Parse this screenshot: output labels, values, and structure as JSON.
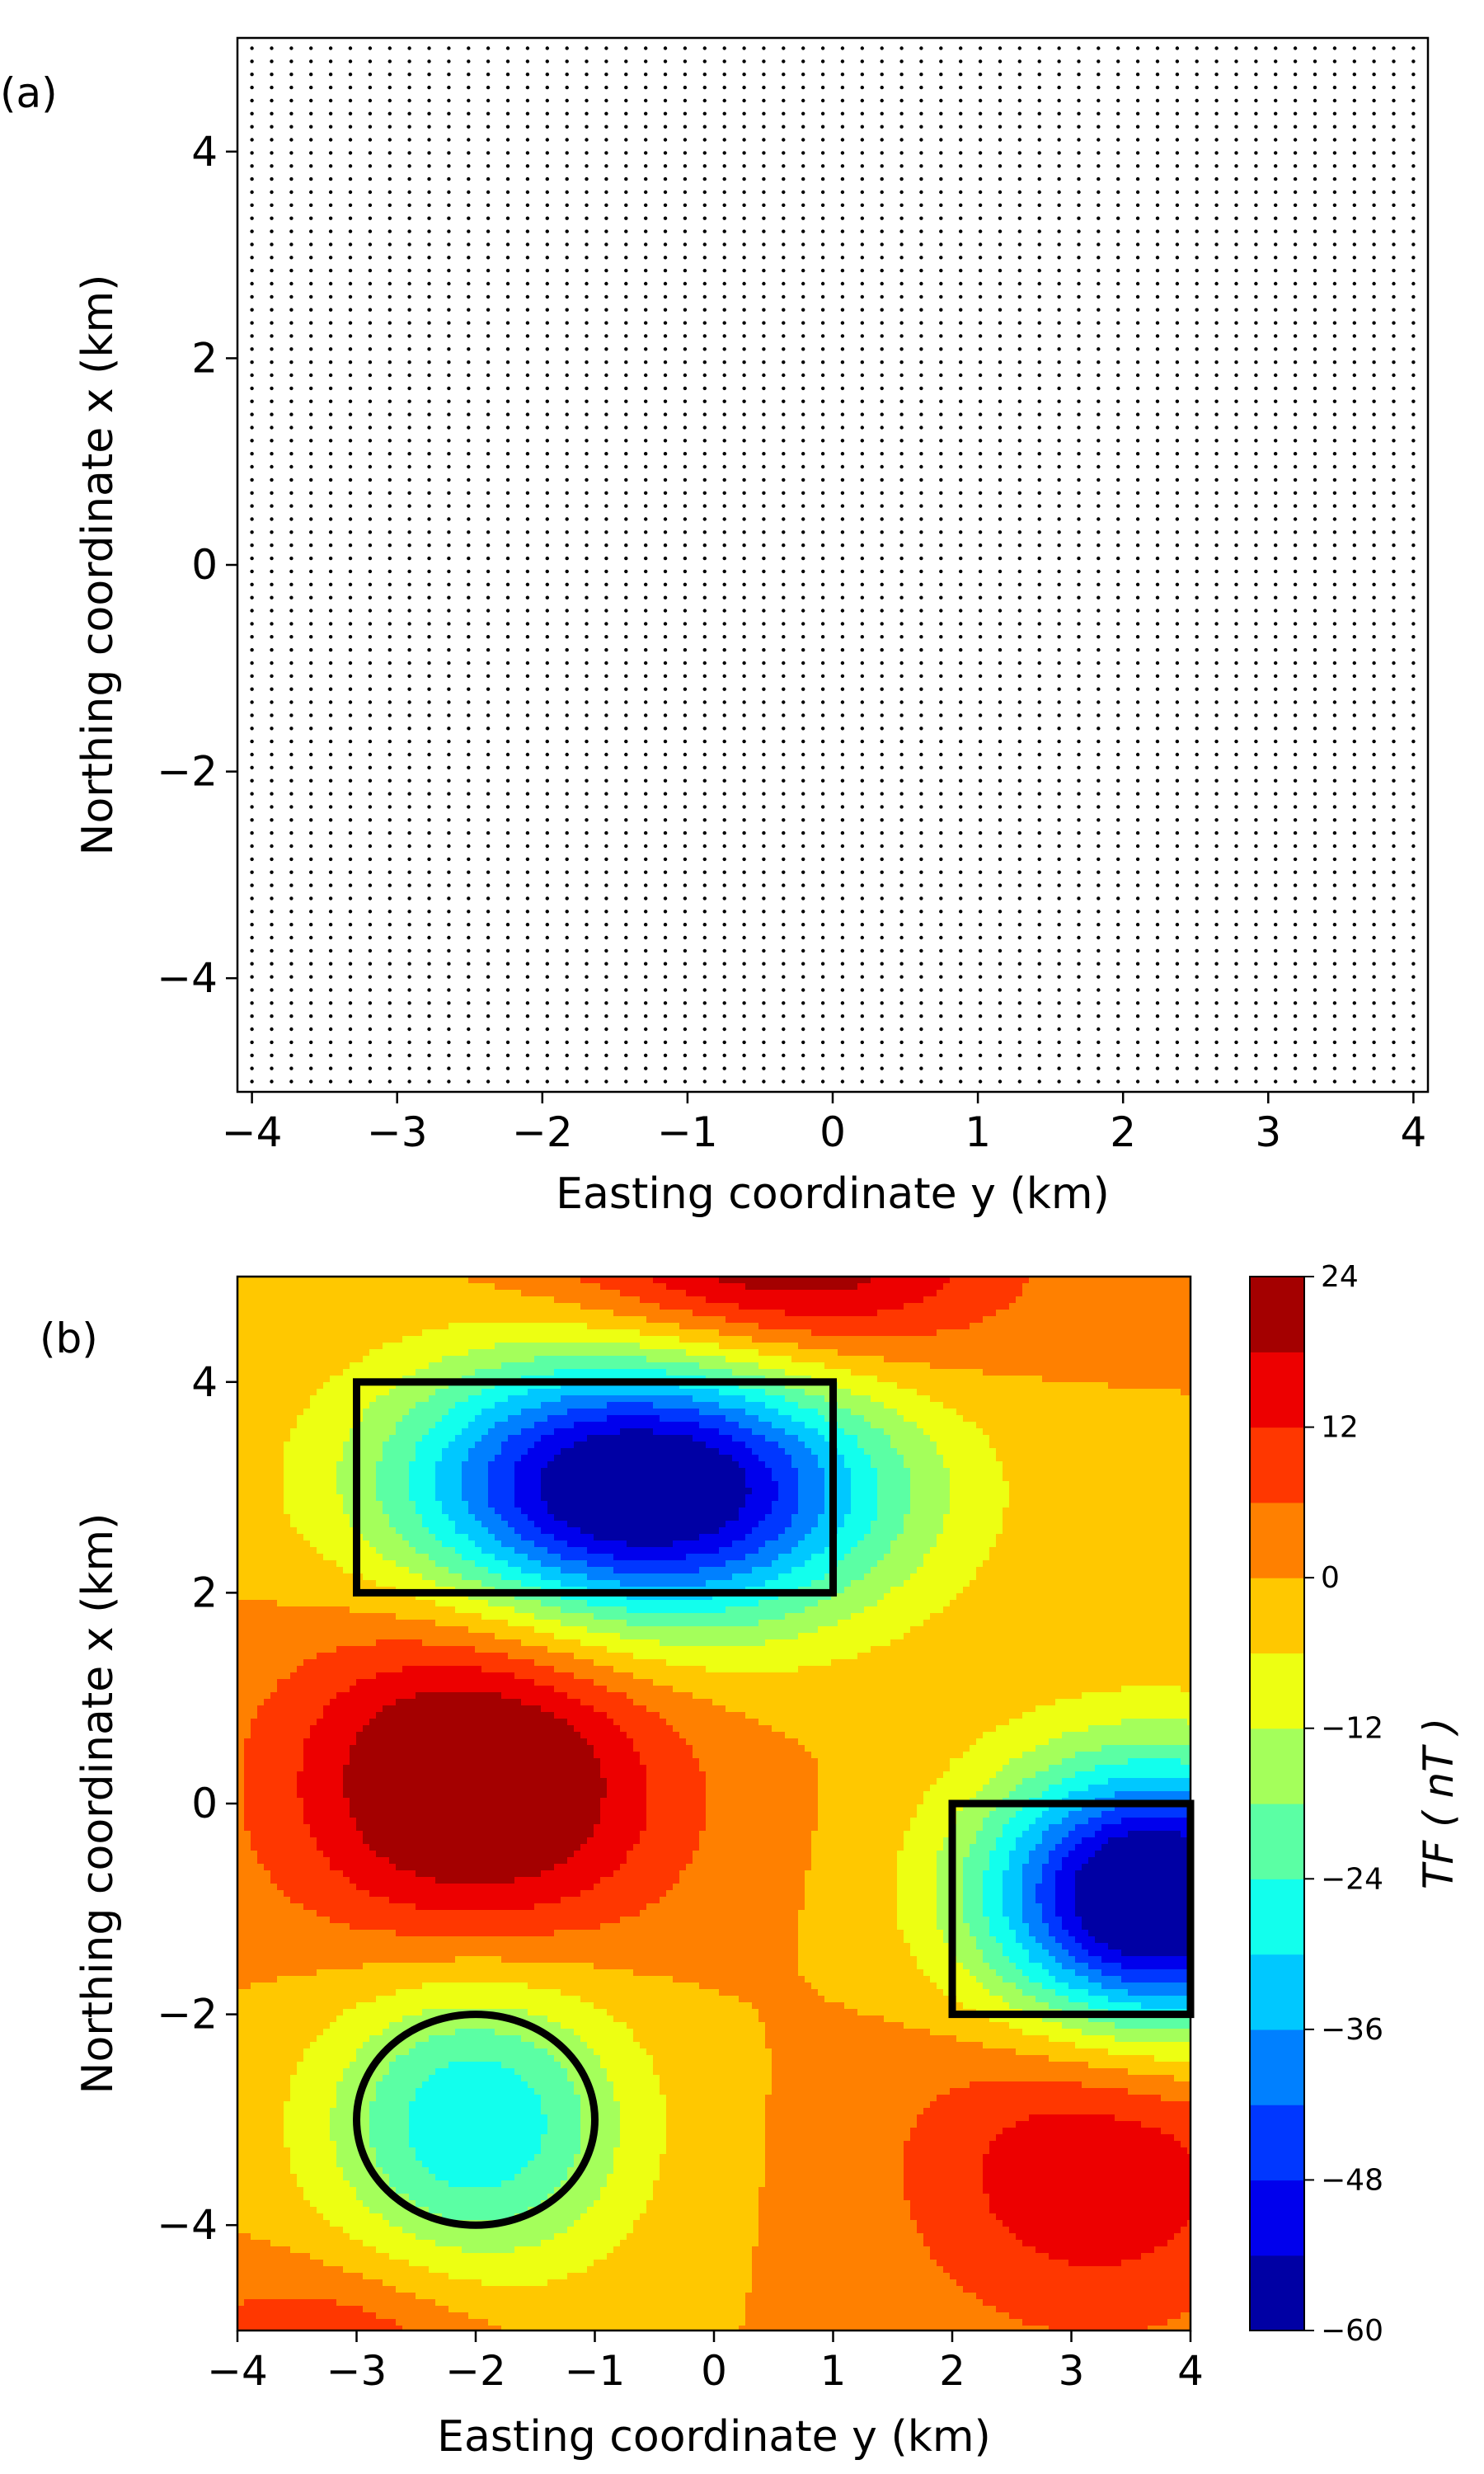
{
  "chart_data": [
    {
      "panel": "(a)",
      "type": "scatter",
      "xlabel": "Easting coordinate y (km)",
      "ylabel": "Northing coordinate x (km)",
      "xlim": [
        -4.1,
        4.1
      ],
      "ylim": [
        -5.1,
        5.1
      ],
      "xticks": [
        -4,
        -3,
        -2,
        -1,
        0,
        1,
        2,
        3,
        4
      ],
      "xtick_labels": [
        "−4",
        "−3",
        "−2",
        "−1",
        "0",
        "1",
        "2",
        "3",
        "4"
      ],
      "yticks": [
        -4,
        -2,
        0,
        2,
        4
      ],
      "ytick_labels": [
        "−4",
        "−2",
        "0",
        "2",
        "4"
      ],
      "grid": false,
      "points": {
        "description_free": true,
        "x_start": -4,
        "x_end": 4,
        "x_count": 60,
        "y_start": -5,
        "y_end": 5,
        "y_count": 80
      },
      "marker_color": "#000000"
    },
    {
      "panel": "(b)",
      "type": "heatmap",
      "xlabel": "Easting coordinate y (km)",
      "ylabel": "Northing coordinate x (km)",
      "xlim": [
        -4,
        4
      ],
      "ylim": [
        -5,
        5
      ],
      "xticks": [
        -4,
        -3,
        -2,
        -1,
        0,
        1,
        2,
        3,
        4
      ],
      "xtick_labels": [
        "−4",
        "−3",
        "−2",
        "−1",
        "0",
        "1",
        "2",
        "3",
        "4"
      ],
      "yticks": [
        -4,
        -2,
        0,
        2,
        4
      ],
      "ytick_labels": [
        "−4",
        "−2",
        "0",
        "2",
        "4"
      ],
      "colormap": "jet",
      "levels_min": -60,
      "levels_max": 24,
      "level_step": 6,
      "colorbar_label": "TF ( nT )",
      "colorbar_ticks": [
        24,
        12,
        0,
        -12,
        -24,
        -36,
        -48,
        -60
      ],
      "colorbar_tick_labels": [
        "24",
        "12",
        "0",
        "−12",
        "−24",
        "−36",
        "−48",
        "−60"
      ],
      "anomalies": [
        {
          "y": -2.0,
          "x": 0.2,
          "amplitude": 30,
          "sy": 1.1,
          "sx": 1.1
        },
        {
          "y": -0.6,
          "x": 3.0,
          "amplitude": -67,
          "sy": 1.4,
          "sx": 0.9
        },
        {
          "y": 3.7,
          "x": -0.9,
          "amplitude": -70,
          "sy": 1.0,
          "sx": 0.9
        },
        {
          "y": -2.0,
          "x": -3.0,
          "amplitude": -30,
          "sy": 0.9,
          "sx": 1.0
        },
        {
          "y": 3.2,
          "x": -3.4,
          "amplitude": 18,
          "sy": 1.1,
          "sx": 1.1
        },
        {
          "y": 0.5,
          "x": 5.2,
          "amplitude": 26,
          "sy": 1.3,
          "sx": 0.8
        },
        {
          "y": -3.2,
          "x": -5.2,
          "amplitude": 12,
          "sy": 1.0,
          "sx": 0.6
        }
      ],
      "background_value": 0,
      "outlines": [
        {
          "shape": "rectangle",
          "y_min": -3,
          "y_max": 1,
          "x_min": 2,
          "x_max": 4
        },
        {
          "shape": "rectangle",
          "y_min": 2,
          "y_max": 4,
          "x_min": -2,
          "x_max": 0
        },
        {
          "shape": "circle",
          "y_center": -2,
          "x_center": -3,
          "radius": 1
        }
      ],
      "outline_color": "#000000"
    }
  ]
}
